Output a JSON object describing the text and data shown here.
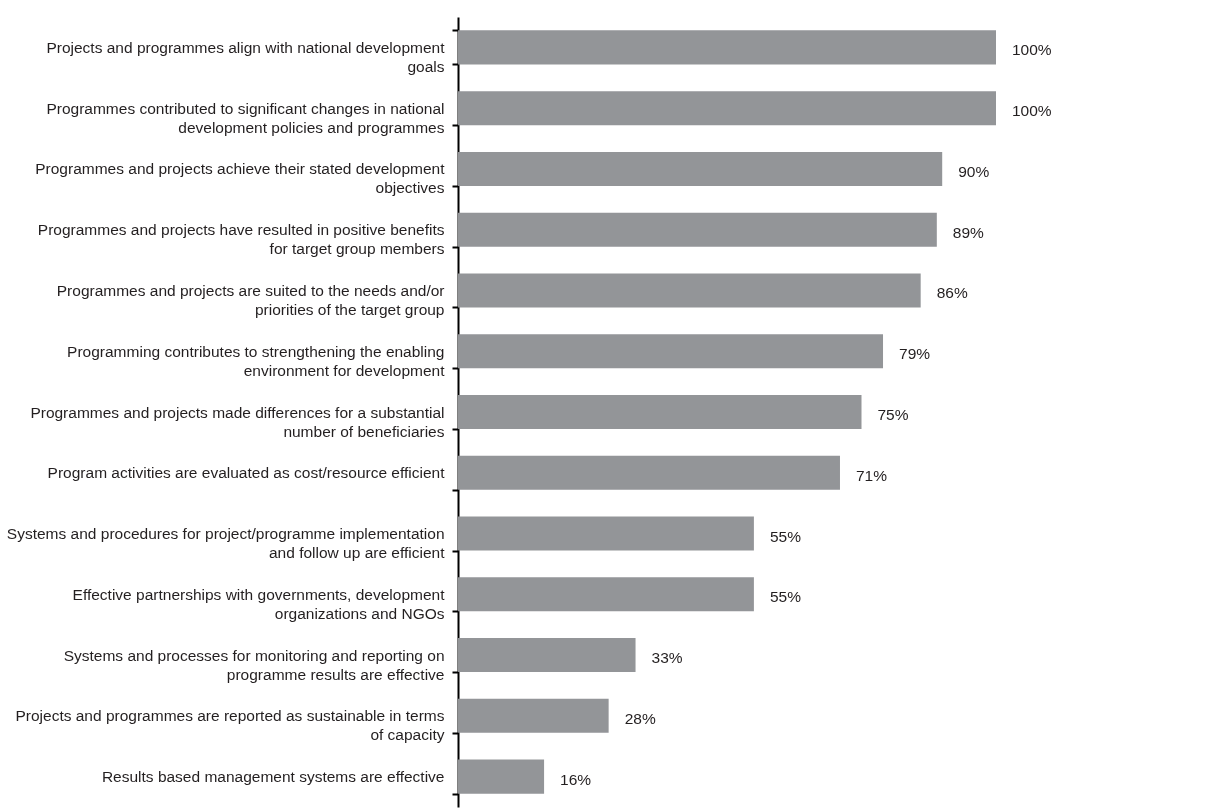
{
  "chart_data": {
    "type": "bar",
    "orientation": "horizontal",
    "color": "#939598",
    "categories": [
      "Projects and programmes align with national development goals",
      "Programmes contributed to significant changes in national development policies and programmes",
      "Programmes and projects achieve their stated development objectives",
      "Programmes and projects have resulted in positive benefits for target group members",
      "Programmes and projects are suited to the needs and/or priorities of the target group",
      "Programming contributes to strengthening the enabling environment for development",
      "Programmes and projects made differences for a substantial number of beneficiaries",
      "Program activities are evaluated as cost/resource efficient",
      "Systems and procedures for project/programme implementation and follow up are efficient",
      "Effective partnerships with governments, development organizations and NGOs",
      "Systems and processes for monitoring and reporting on programme results are effective",
      "Projects and programmes are reported as sustainable in terms of capacity",
      "Results based management systems are effective"
    ],
    "values": [
      100,
      100,
      90,
      89,
      86,
      79,
      75,
      71,
      55,
      55,
      33,
      28,
      16
    ],
    "value_labels": [
      "100%",
      "100%",
      "90%",
      "89%",
      "86%",
      "79%",
      "75%",
      "71%",
      "55%",
      "55%",
      "33%",
      "28%",
      "16%"
    ],
    "tick_labels": "y"
  }
}
